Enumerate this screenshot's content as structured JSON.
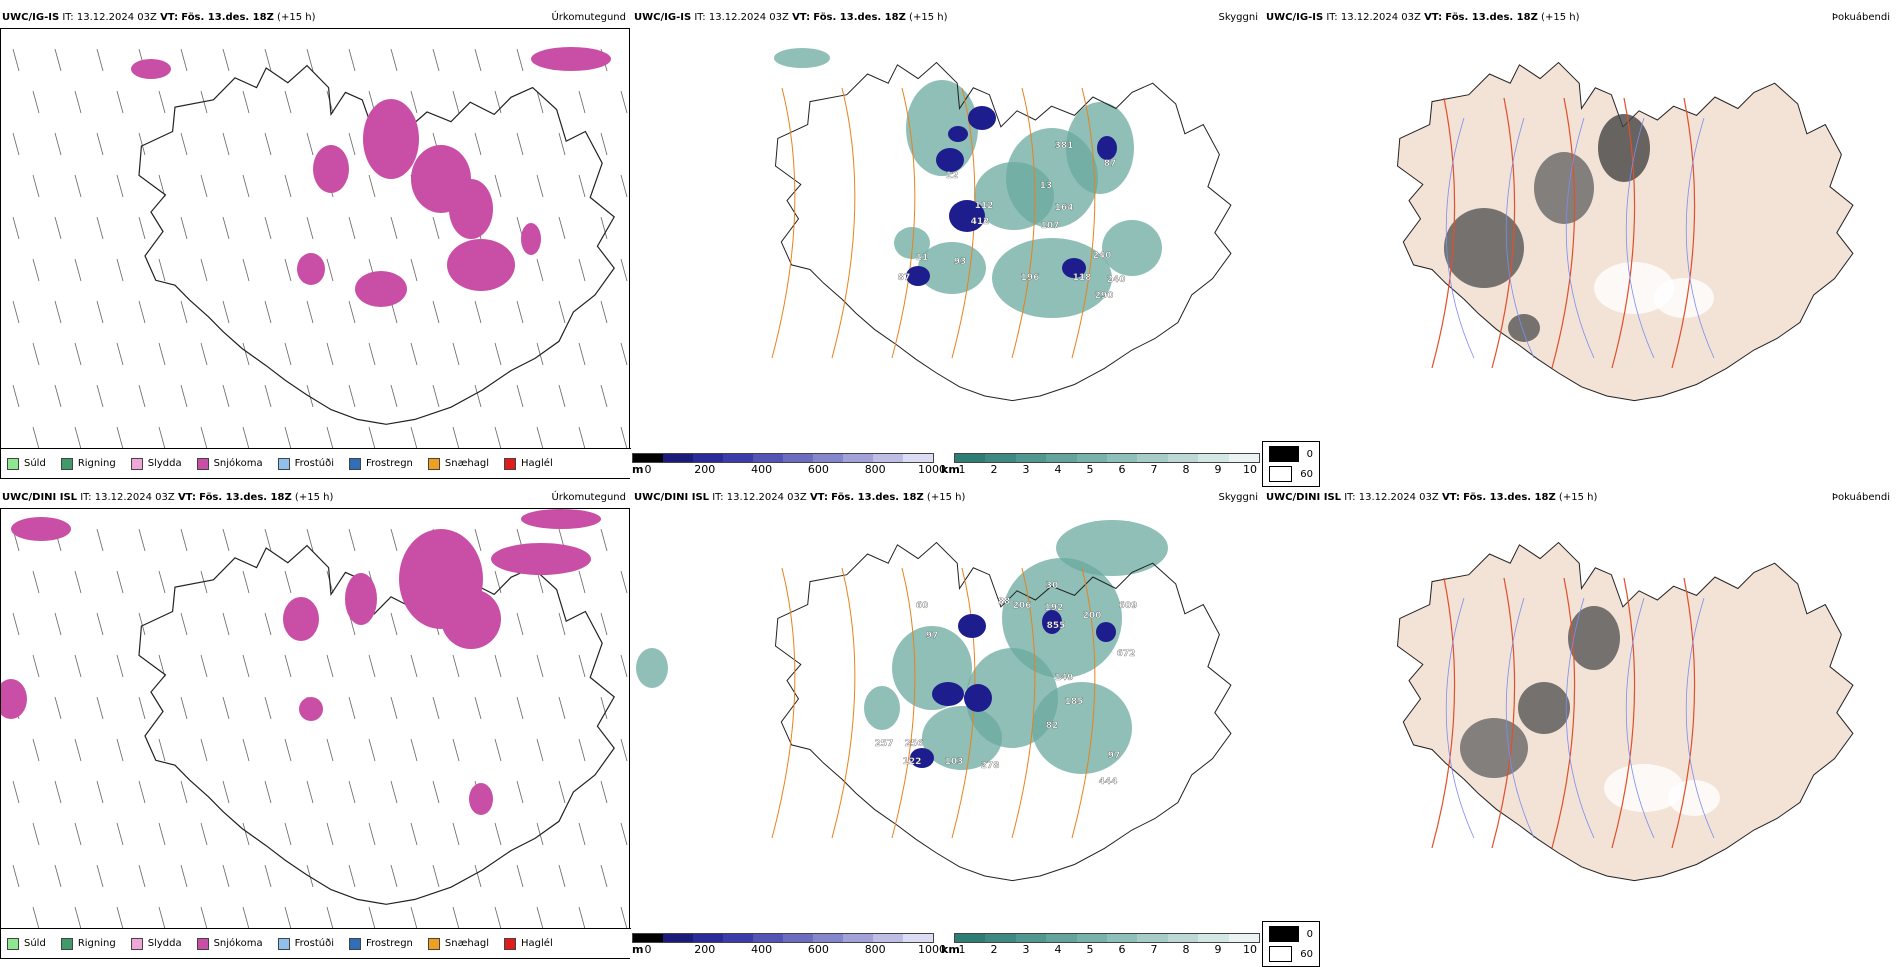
{
  "header": {
    "issued_label": "IT:",
    "issued": "13.12.2024 03Z",
    "valid_label": "VT:",
    "valid": "Fös. 13.des. 18Z",
    "lead": "(+15 h)"
  },
  "rows": [
    {
      "model": "UWC/IG-IS"
    },
    {
      "model": "UWC/DINI ISL"
    }
  ],
  "panel_titles": {
    "precip": "Úrkomutegund",
    "cloud": "Skyggni",
    "fog": "Þokuábendi"
  },
  "precip_legend": [
    {
      "label": "Súld",
      "color": "#8fe88f"
    },
    {
      "label": "Rigning",
      "color": "#3f9a6a"
    },
    {
      "label": "Slydda",
      "color": "#f2a6d8"
    },
    {
      "label": "Snjókoma",
      "color": "#c94fa6"
    },
    {
      "label": "Frostúði",
      "color": "#8fc1ee"
    },
    {
      "label": "Frostregn",
      "color": "#2f6fb8"
    },
    {
      "label": "Snæhagl",
      "color": "#f0a020"
    },
    {
      "label": "Haglél",
      "color": "#e11c1c"
    }
  ],
  "cloud_base_scale": {
    "unit": "m",
    "ticks": [
      "0",
      "200",
      "400",
      "600",
      "800",
      "1000"
    ],
    "colors": [
      "#000000",
      "#1b1b7a",
      "#2a2a9a",
      "#3c3ca8",
      "#5454b4",
      "#6c6cc0",
      "#8686cc",
      "#a2a2d8",
      "#bebee4",
      "#dcdcf2"
    ]
  },
  "visibility_scale": {
    "unit": "km",
    "ticks": [
      "1",
      "2",
      "3",
      "4",
      "5",
      "6",
      "7",
      "8",
      "9",
      "10"
    ],
    "colors": [
      "#2e7d74",
      "#3e8a82",
      "#50988f",
      "#63a59d",
      "#78b2ab",
      "#8ebfb9",
      "#a5ccc7",
      "#bcd9d5",
      "#d3e7e4",
      "#ebf4f3"
    ]
  },
  "fog_legend": [
    {
      "value": "0",
      "color": "#000000"
    },
    {
      "value": "60",
      "color": "#ffffff"
    }
  ],
  "cloud_labels_row1": [
    "381",
    "87",
    "13",
    "12",
    "112",
    "412",
    "164",
    "107",
    "11",
    "93",
    "87",
    "196",
    "118",
    "240",
    "240",
    "290"
  ],
  "cloud_labels_row2": [
    "30",
    "609",
    "192",
    "200",
    "855",
    "60",
    "97",
    "206",
    "88",
    "672",
    "149",
    "185",
    "82",
    "257",
    "256",
    "122",
    "103",
    "278",
    "97",
    "444"
  ],
  "colors": {
    "snow": "#c94fa6",
    "coast": "#222222",
    "road": "#e8821e",
    "fog_land": "#f3e2d6",
    "fog_road": "#e0502a",
    "river": "#7a8ef0"
  }
}
